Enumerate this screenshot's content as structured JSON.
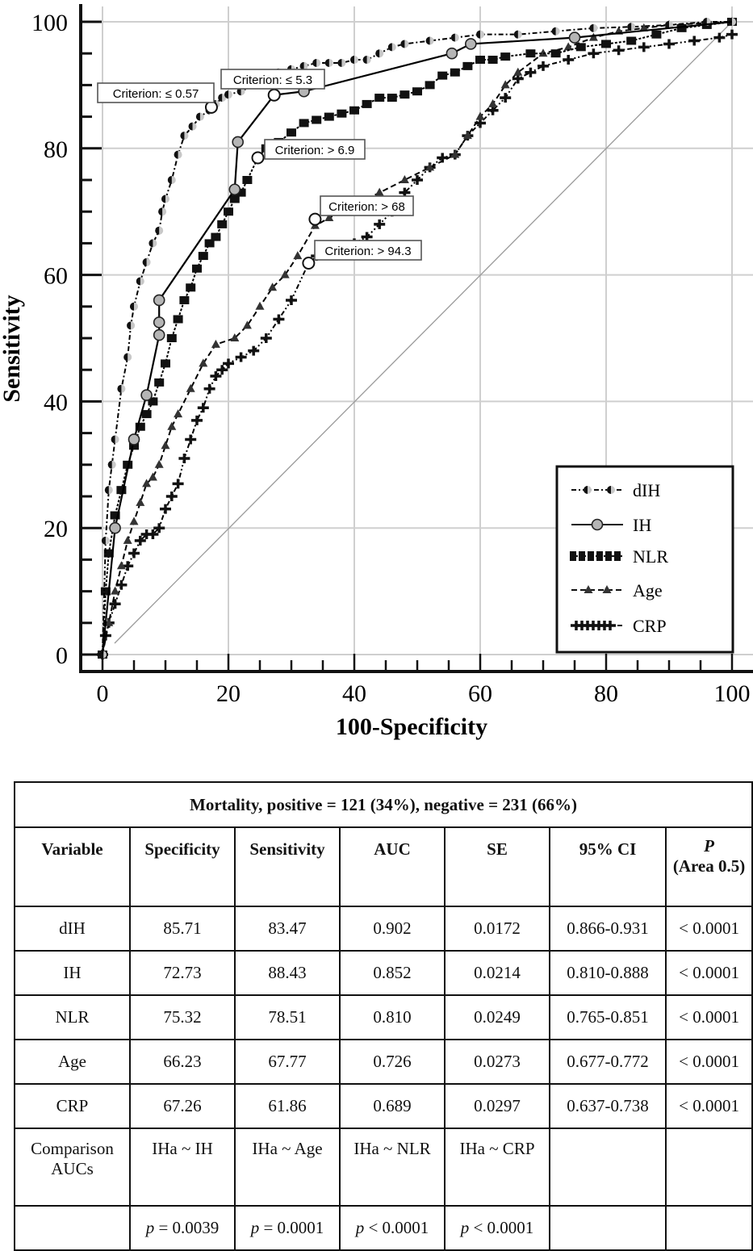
{
  "chart_data": {
    "type": "line",
    "title": "",
    "xlabel": "100-Specificity",
    "ylabel": "Sensitivity",
    "xlim": [
      0,
      100
    ],
    "ylim": [
      0,
      100
    ],
    "x_ticks": [
      "0",
      "20",
      "40",
      "60",
      "80",
      "100"
    ],
    "y_ticks": [
      "0",
      "20",
      "40",
      "60",
      "80",
      "100"
    ],
    "grid": true,
    "legend_position": "bottom-right",
    "reference_line": {
      "name": "chance",
      "x": [
        0,
        100
      ],
      "y": [
        0,
        100
      ]
    },
    "series": [
      {
        "name": "dIH",
        "marker": "half-circle",
        "line": "dash-dot",
        "color": "#000000",
        "x": [
          0,
          0.5,
          1,
          1.5,
          2,
          3,
          4,
          4.5,
          5,
          6,
          7,
          8,
          9,
          9.5,
          10,
          11,
          12,
          13,
          14.3,
          15.5,
          17,
          18,
          19,
          20,
          22,
          24,
          26,
          28,
          30,
          32,
          34,
          36,
          38,
          40,
          42,
          44,
          46,
          48,
          52,
          56,
          60,
          66,
          72,
          78,
          84,
          90,
          96,
          100
        ],
        "y": [
          0,
          18,
          26,
          30,
          34,
          42,
          47,
          52,
          55,
          59,
          62,
          65,
          67,
          70,
          72,
          75,
          79,
          82,
          83.47,
          85,
          86,
          87,
          88,
          88.5,
          89,
          90,
          91,
          92,
          92.5,
          93,
          93.5,
          93.5,
          93.5,
          94,
          94,
          95,
          96,
          96.5,
          97,
          97.5,
          98,
          98,
          98.5,
          99,
          99.2,
          99.5,
          100,
          100
        ]
      },
      {
        "name": "IH",
        "marker": "circle",
        "line": "solid",
        "color": "#000000",
        "x": [
          0,
          2,
          5,
          7,
          9,
          9,
          9,
          21,
          21.5,
          27.27,
          32,
          55.5,
          58.5,
          75,
          100
        ],
        "y": [
          0,
          20,
          34,
          41,
          50.5,
          52.5,
          56,
          73.5,
          81,
          88.43,
          89,
          95,
          96.5,
          97.5,
          100
        ]
      },
      {
        "name": "NLR",
        "marker": "square",
        "line": "dashed-bar",
        "color": "#000000",
        "x": [
          0,
          0.5,
          1,
          2,
          3,
          4,
          5,
          6,
          7,
          8,
          9,
          10,
          11,
          12,
          13,
          14,
          15,
          16,
          17,
          18,
          19,
          20,
          21,
          22,
          23,
          24.68,
          26,
          28,
          30,
          32,
          34,
          36,
          38,
          40,
          42,
          44,
          46,
          48,
          50,
          52,
          54,
          56,
          58,
          60,
          62,
          64,
          68,
          72,
          76,
          80,
          84,
          88,
          92,
          96,
          100
        ],
        "y": [
          0,
          10,
          16,
          22,
          26,
          30,
          33,
          36,
          38,
          40,
          43,
          46,
          50,
          53,
          56,
          58,
          61,
          63,
          65,
          66,
          68,
          70,
          72,
          73,
          75,
          78.51,
          80,
          81,
          82.5,
          84,
          84.5,
          85,
          85.5,
          86,
          87,
          88,
          88,
          88.5,
          89,
          90,
          91.5,
          92,
          93,
          94,
          94,
          94.5,
          95,
          95,
          96,
          96.5,
          97,
          98,
          99,
          99.5,
          100
        ]
      },
      {
        "name": "Age",
        "marker": "triangle",
        "line": "dashed",
        "color": "#000000",
        "x": [
          0,
          1,
          2,
          3,
          4,
          5,
          6,
          7,
          8,
          9,
          10,
          11,
          12,
          14,
          16,
          18,
          21,
          23,
          25,
          27,
          29,
          31,
          33.77,
          36,
          40,
          44,
          48,
          52,
          56,
          58,
          60,
          62,
          64,
          66,
          70,
          74,
          78,
          82,
          86,
          90,
          100
        ],
        "y": [
          0,
          5,
          10,
          14,
          18,
          21,
          24,
          27,
          28,
          30,
          33,
          36,
          38,
          42,
          46,
          49,
          50,
          52,
          55,
          58,
          60,
          63,
          67.77,
          69,
          71,
          73,
          75,
          77,
          79,
          82,
          85,
          87,
          90,
          92,
          95,
          96,
          97.5,
          98.5,
          99,
          99.5,
          100
        ]
      },
      {
        "name": "CRP",
        "marker": "plus",
        "line": "dash-dot-dot",
        "color": "#000000",
        "x": [
          0,
          0.5,
          1,
          2,
          3,
          4,
          5,
          6,
          7,
          8,
          9,
          10,
          11,
          12,
          13,
          14,
          15,
          16,
          17,
          18,
          19,
          20,
          22,
          24,
          26,
          28,
          30,
          32.74,
          34,
          36,
          38,
          40,
          42,
          44,
          46,
          48,
          50,
          52,
          54,
          56,
          58,
          60,
          62,
          64,
          66,
          68,
          70,
          74,
          78,
          82,
          86,
          90,
          94,
          98,
          100
        ],
        "y": [
          0,
          3,
          5,
          8,
          11,
          14,
          16,
          18,
          19,
          19,
          20,
          23,
          25,
          27,
          31,
          34,
          37,
          39,
          42,
          44,
          45,
          46,
          47,
          48,
          50,
          53,
          56,
          61.86,
          63,
          63.5,
          64,
          65,
          66,
          68,
          70,
          73,
          75,
          77,
          78.5,
          79,
          82,
          84,
          86,
          88,
          91,
          92,
          93,
          94,
          95,
          95.5,
          96,
          96.5,
          97,
          97.5,
          98
        ]
      }
    ],
    "annotations": [
      {
        "text": "Criterion: ≤ 0.57",
        "series": "dIH",
        "x": 17.3,
        "y": 86.5
      },
      {
        "text": "Criterion: ≤ 5.3",
        "series": "IH",
        "x": 27.27,
        "y": 88.43
      },
      {
        "text": "Criterion: > 6.9",
        "series": "NLR",
        "x": 24.68,
        "y": 78.51
      },
      {
        "text": "Criterion: > 68",
        "series": "Age",
        "x": 33.77,
        "y": 68.8
      },
      {
        "text": "Criterion: > 94.3",
        "series": "CRP",
        "x": 32.74,
        "y": 61.86
      }
    ]
  },
  "table": {
    "title": "Mortality, positive = 121 (34%), negative = 231 (66%)",
    "headers": [
      "Variable",
      "Specificity",
      "Sensitivity",
      "AUC",
      "SE",
      "95% CI"
    ],
    "p_header": {
      "symbol": "P",
      "sub": "(Area 0.5)"
    },
    "rows": [
      {
        "variable": "dIH",
        "specificity": "85.71",
        "sensitivity": "83.47",
        "auc": "0.902",
        "se": "0.0172",
        "ci": "0.866-0.931",
        "p": "< 0.0001"
      },
      {
        "variable": "IH",
        "specificity": "72.73",
        "sensitivity": "88.43",
        "auc": "0.852",
        "se": "0.0214",
        "ci": "0.810-0.888",
        "p": "< 0.0001"
      },
      {
        "variable": "NLR",
        "specificity": "75.32",
        "sensitivity": "78.51",
        "auc": "0.810",
        "se": "0.0249",
        "ci": "0.765-0.851",
        "p": "< 0.0001"
      },
      {
        "variable": "Age",
        "specificity": "66.23",
        "sensitivity": "67.77",
        "auc": "0.726",
        "se": "0.0273",
        "ci": "0.677-0.772",
        "p": "< 0.0001"
      },
      {
        "variable": "CRP",
        "specificity": "67.26",
        "sensitivity": "61.86",
        "auc": "0.689",
        "se": "0.0297",
        "ci": "0.637-0.738",
        "p": "< 0.0001"
      }
    ],
    "comparison": {
      "label_line1": "Comparison",
      "label_line2": "AUCs",
      "pairs": [
        "IHa ~ IH",
        "IHa ~ Age",
        "IHa ~ NLR",
        "IHa ~ CRP"
      ],
      "p_values": [
        {
          "sym": "p",
          "rel": "= 0.0039"
        },
        {
          "sym": "p",
          "rel": "= 0.0001"
        },
        {
          "sym": "p",
          "rel": "< 0.0001"
        },
        {
          "sym": "p",
          "rel": "< 0.0001"
        }
      ]
    }
  }
}
